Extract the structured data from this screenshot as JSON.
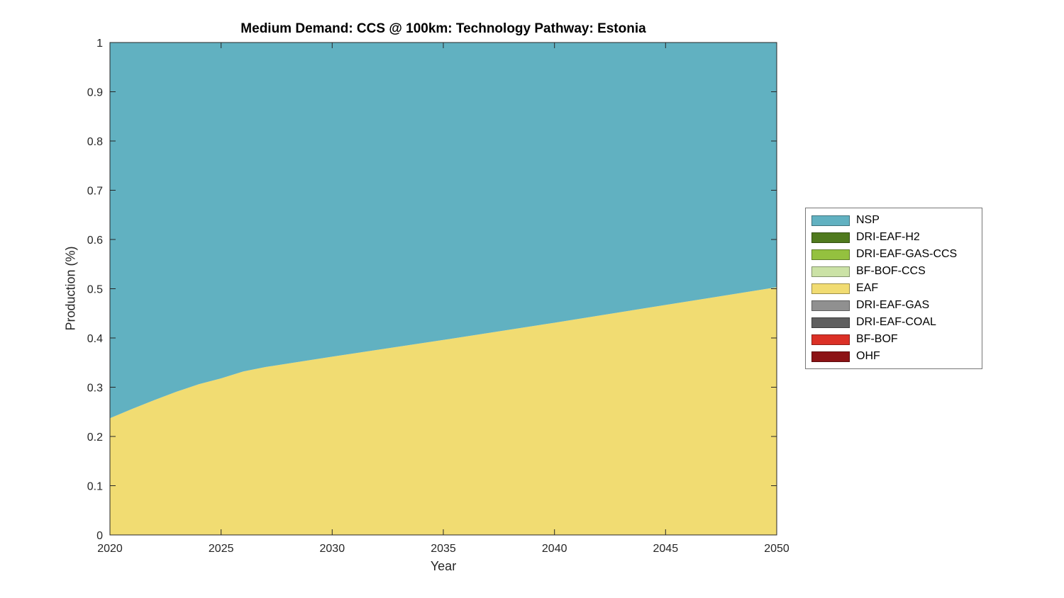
{
  "figure": {
    "background": "#ffffff",
    "axis_color": "#262626"
  },
  "chart_data": {
    "type": "area",
    "title": "Medium Demand: CCS @ 100km: Technology Pathway: Estonia",
    "xlabel": "Year",
    "ylabel": "Production (%)",
    "xlim": [
      2020,
      2050
    ],
    "ylim": [
      0,
      1
    ],
    "xticks": [
      2020,
      2025,
      2030,
      2035,
      2040,
      2045,
      2050
    ],
    "yticks": [
      0,
      0.1,
      0.2,
      0.3,
      0.4,
      0.5,
      0.6,
      0.7,
      0.8,
      0.9,
      1
    ],
    "ytick_labels": [
      "0",
      "0.1",
      "0.2",
      "0.3",
      "0.4",
      "0.5",
      "0.6",
      "0.7",
      "0.8",
      "0.9",
      "1"
    ],
    "grid": false,
    "legend_position": "right-outside",
    "x": [
      2020,
      2021,
      2022,
      2023,
      2024,
      2025,
      2026,
      2027,
      2028,
      2030,
      2035,
      2040,
      2045,
      2050
    ],
    "series": [
      {
        "name": "OHF",
        "color": "#8C1215",
        "values": [
          0,
          0,
          0,
          0,
          0,
          0,
          0,
          0,
          0,
          0,
          0,
          0,
          0,
          0
        ]
      },
      {
        "name": "BF-BOF",
        "color": "#DB3026",
        "values": [
          0,
          0,
          0,
          0,
          0,
          0,
          0,
          0,
          0,
          0,
          0,
          0,
          0,
          0
        ]
      },
      {
        "name": "DRI-EAF-COAL",
        "color": "#5F5F5F",
        "values": [
          0,
          0,
          0,
          0,
          0,
          0,
          0,
          0,
          0,
          0,
          0,
          0,
          0,
          0
        ]
      },
      {
        "name": "DRI-EAF-GAS",
        "color": "#909090",
        "values": [
          0,
          0,
          0,
          0,
          0,
          0,
          0,
          0,
          0,
          0,
          0,
          0,
          0,
          0
        ]
      },
      {
        "name": "EAF",
        "color": "#F1DC72",
        "values": [
          0.237,
          0.256,
          0.274,
          0.291,
          0.306,
          0.318,
          0.332,
          0.341,
          0.348,
          0.362,
          0.396,
          0.431,
          0.467,
          0.503
        ]
      },
      {
        "name": "BF-BOF-CCS",
        "color": "#CBE2A6",
        "values": [
          0,
          0,
          0,
          0,
          0,
          0,
          0,
          0,
          0,
          0,
          0,
          0,
          0,
          0
        ]
      },
      {
        "name": "DRI-EAF-GAS-CCS",
        "color": "#94C13F",
        "values": [
          0,
          0,
          0,
          0,
          0,
          0,
          0,
          0,
          0,
          0,
          0,
          0,
          0,
          0
        ]
      },
      {
        "name": "DRI-EAF-H2",
        "color": "#507A1E",
        "values": [
          0,
          0,
          0,
          0,
          0,
          0,
          0,
          0,
          0,
          0,
          0,
          0,
          0,
          0
        ]
      },
      {
        "name": "NSP",
        "color": "#61B1C1",
        "values": [
          0.763,
          0.744,
          0.726,
          0.709,
          0.694,
          0.682,
          0.668,
          0.659,
          0.652,
          0.638,
          0.604,
          0.569,
          0.533,
          0.497
        ]
      }
    ],
    "legend_order": [
      "NSP",
      "DRI-EAF-H2",
      "DRI-EAF-GAS-CCS",
      "BF-BOF-CCS",
      "EAF",
      "DRI-EAF-GAS",
      "DRI-EAF-COAL",
      "BF-BOF",
      "OHF"
    ]
  }
}
